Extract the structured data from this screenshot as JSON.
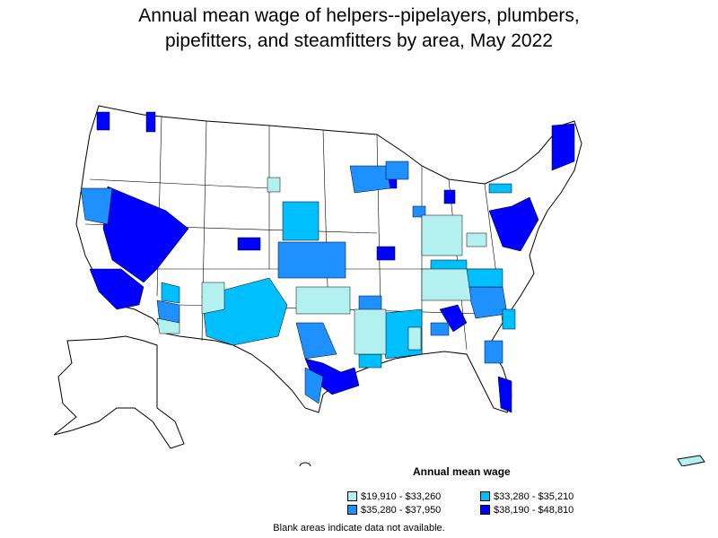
{
  "title_line1": "Annual mean wage of helpers--pipelayers, plumbers,",
  "title_line2": "pipefitters, and steamfitters by area, May 2022",
  "legend": {
    "title": "Annual mean wage",
    "items": [
      {
        "label": "$19,910 - $33,260",
        "color": "#b3f0f0"
      },
      {
        "label": "$33,280 - $35,210",
        "color": "#00bfff"
      },
      {
        "label": "$35,280 - $37,950",
        "color": "#1e90ff"
      },
      {
        "label": "$38,190 - $48,810",
        "color": "#0000ff"
      }
    ]
  },
  "footnote": "Blank areas indicate data not available."
}
